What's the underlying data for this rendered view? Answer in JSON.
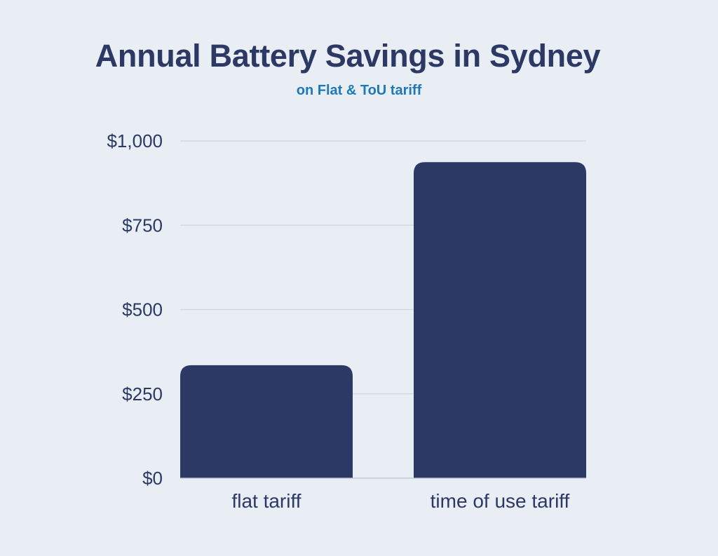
{
  "chart_data": {
    "type": "bar",
    "title": "Annual Battery Savings in Sydney",
    "subtitle": "on Flat & ToU tariff",
    "categories": [
      "flat tariff",
      "time of use tariff"
    ],
    "values": [
      335,
      937
    ],
    "ylim": [
      0,
      1000
    ],
    "yticks": [
      0,
      250,
      500,
      750,
      1000
    ],
    "ytick_labels": [
      "$0",
      "$250",
      "$500",
      "$750",
      "$1,000"
    ],
    "grid": true,
    "bar_color": "#2b3964",
    "grid_color": "#cfd6df",
    "text_color": "#2b3964",
    "subtitle_color": "#1f78b8",
    "background_color": "#e9eef4"
  }
}
